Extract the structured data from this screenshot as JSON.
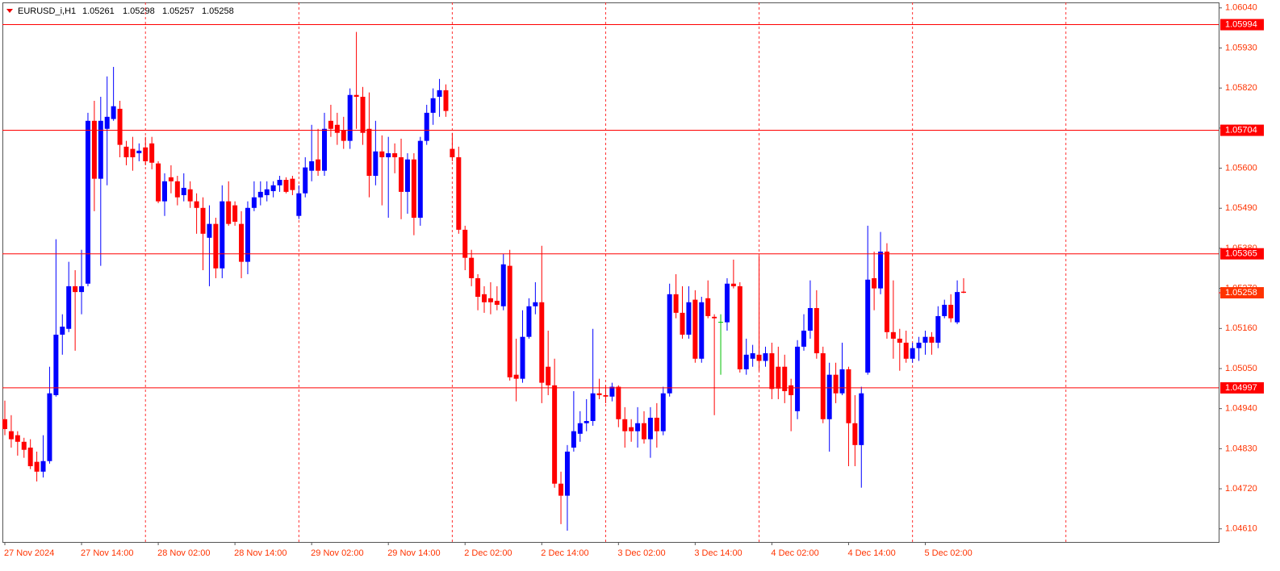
{
  "chart_data": {
    "type": "candlestick",
    "symbol": "EURUSD_i,H1",
    "categories": [
      "27 Nov 2024",
      null,
      null,
      null,
      null,
      null,
      null,
      null,
      null,
      null,
      null,
      null,
      "27 Nov 14:00",
      null,
      null,
      null,
      null,
      null,
      null,
      null,
      null,
      null,
      null,
      null,
      "28 Nov 02:00",
      null,
      null,
      null,
      null,
      null,
      null,
      null,
      null,
      null,
      null,
      null,
      "28 Nov 14:00",
      null,
      null,
      null,
      null,
      null,
      null,
      null,
      null,
      null,
      null,
      null,
      "29 Nov 02:00",
      null,
      null,
      null,
      null,
      null,
      null,
      null,
      null,
      null,
      null,
      null,
      "29 Nov 14:00",
      null,
      null,
      null,
      null,
      null,
      null,
      null,
      null,
      null,
      null,
      null,
      "2 Dec 02:00",
      null,
      null,
      null,
      null,
      null,
      null,
      null,
      null,
      null,
      null,
      null,
      "2 Dec 14:00",
      null,
      null,
      null,
      null,
      null,
      null,
      null,
      null,
      null,
      null,
      null,
      "3 Dec 02:00",
      null,
      null,
      null,
      null,
      null,
      null,
      null,
      null,
      null,
      null,
      null,
      "3 Dec 14:00",
      null,
      null,
      null,
      null,
      null,
      null,
      null,
      null,
      null,
      null,
      null,
      "4 Dec 02:00",
      null,
      null,
      null,
      null,
      null,
      null,
      null,
      null,
      null,
      null,
      null,
      "4 Dec 14:00",
      null,
      null,
      null,
      null,
      null,
      null,
      null,
      null,
      null,
      null,
      null,
      "5 Dec 02:00",
      null,
      null,
      null,
      null,
      null,
      null
    ],
    "open": [
      1.04911,
      1.04878,
      1.04867,
      1.04849,
      1.04833,
      1.04794,
      1.04767,
      1.04796,
      1.04977,
      1.05143,
      1.05159,
      1.05276,
      1.0526,
      1.05283,
      1.0573,
      1.05571,
      1.05708,
      1.05735,
      1.05763,
      1.05659,
      1.05653,
      1.05641,
      1.05657,
      1.05668,
      1.05613,
      1.05509,
      1.05575,
      1.05564,
      1.05526,
      1.05542,
      1.05509,
      1.05491,
      1.05409,
      1.05447,
      1.05325,
      1.05509,
      1.05498,
      1.05447,
      1.05343,
      1.05491,
      1.0552,
      1.05526,
      1.05537,
      1.05553,
      1.05568,
      1.05571,
      1.05469,
      1.05531,
      1.05593,
      1.05624,
      1.05593,
      1.0573,
      1.05719,
      1.05703,
      1.05675,
      1.05801,
      1.05796,
      1.05708,
      1.05579,
      1.05646,
      1.0563,
      1.05641,
      1.0563,
      1.05535,
      1.05624,
      1.05464,
      1.05675,
      1.05752,
      1.05796,
      1.05814,
      1.05653,
      1.0563,
      1.05431,
      1.05354,
      1.05298,
      1.05254,
      1.05243,
      1.05236,
      1.05221,
      1.05332,
      1.05033,
      1.05022,
      1.05137,
      1.05221,
      1.05232,
      1.05055,
      1.05004,
      1.04734,
      1.04701,
      1.04833,
      1.04871,
      1.049,
      1.04906,
      1.04982,
      1.04977,
      1.04973,
      1.05,
      1.04911,
      1.04889,
      1.04878,
      1.049,
      1.04856,
      1.04915,
      1.04878,
      1.04982,
      1.05254,
      1.05203,
      1.05143,
      1.05239,
      1.05077,
      1.05243,
      1.05192,
      1.05177,
      1.05177,
      1.05283,
      1.05276,
      1.05048,
      1.05077,
      1.05088,
      1.05071,
      1.05092,
      1.05055,
      1.05055,
      1.05004,
      1.04933,
      1.0511,
      1.05154,
      1.05216,
      1.05092,
      1.04911,
      1.05033,
      1.04982,
      1.05048,
      1.049,
      1.0484,
      1.05039,
      1.05298,
      1.0527,
      1.05371,
      1.0515,
      1.05132,
      1.05121,
      1.05077,
      1.05106,
      1.05121,
      1.05137,
      1.05121,
      1.05194,
      1.05225,
      1.05177,
      1.05261
    ],
    "high": [
      1.04962,
      1.04922,
      1.04878,
      1.0486,
      1.04856,
      1.04822,
      1.04867,
      1.05055,
      1.05405,
      1.05199,
      1.05343,
      1.0532,
      1.05376,
      1.05752,
      1.05785,
      1.05796,
      1.05852,
      1.05878,
      1.05785,
      1.05675,
      1.05686,
      1.05668,
      1.05686,
      1.05686,
      1.05619,
      1.05586,
      1.05608,
      1.05579,
      1.05586,
      1.05564,
      1.05531,
      1.0552,
      1.05498,
      1.05464,
      1.05553,
      1.05564,
      1.05509,
      1.05482,
      1.05509,
      1.05564,
      1.05564,
      1.05564,
      1.05564,
      1.05579,
      1.05575,
      1.05579,
      1.05553,
      1.0563,
      1.05719,
      1.05708,
      1.05752,
      1.05774,
      1.05752,
      1.05741,
      1.05819,
      1.05974,
      1.05823,
      1.05808,
      1.0573,
      1.0569,
      1.05686,
      1.05668,
      1.05681,
      1.05641,
      1.05641,
      1.05686,
      1.05774,
      1.05819,
      1.05845,
      1.0583,
      1.05697,
      1.05659,
      1.05442,
      1.05376,
      1.05309,
      1.05276,
      1.05287,
      1.05276,
      1.05365,
      1.05376,
      1.05132,
      1.0521,
      1.05243,
      1.05287,
      1.05387,
      1.05154,
      1.05077,
      1.04767,
      1.0484,
      1.04988,
      1.04933,
      1.04966,
      1.05159,
      1.05022,
      1.05004,
      1.05011,
      1.05004,
      1.04944,
      1.04911,
      1.04944,
      1.04933,
      1.04944,
      1.04955,
      1.05,
      1.05283,
      1.05309,
      1.05276,
      1.05276,
      1.05265,
      1.05247,
      1.05292,
      1.05199,
      1.05199,
      1.05298,
      1.05349,
      1.05287,
      1.05132,
      1.05115,
      1.05358,
      1.0511,
      1.05121,
      1.0511,
      1.05088,
      1.05022,
      1.05128,
      1.05199,
      1.05292,
      1.05265,
      1.0511,
      1.05066,
      1.05066,
      1.05121,
      1.05055,
      1.04977,
      1.05,
      1.05442,
      1.05371,
      1.05425,
      1.05394,
      1.05292,
      1.05159,
      1.05154,
      1.05121,
      1.05137,
      1.05154,
      1.0515,
      1.05221,
      1.05239,
      1.05254,
      1.05292,
      1.05298
    ],
    "low": [
      1.04867,
      1.04833,
      1.04811,
      1.04805,
      1.04774,
      1.0474,
      1.04751,
      1.04789,
      1.04973,
      1.05088,
      1.0515,
      1.05099,
      1.05199,
      1.05276,
      1.05482,
      1.05332,
      1.05553,
      1.0573,
      1.0563,
      1.05608,
      1.05593,
      1.05619,
      1.05608,
      1.05597,
      1.05504,
      1.05469,
      1.05531,
      1.05498,
      1.05509,
      1.05491,
      1.0542,
      1.0532,
      1.05276,
      1.05298,
      1.05298,
      1.05442,
      1.05442,
      1.05298,
      1.05309,
      1.05482,
      1.05498,
      1.05509,
      1.0552,
      1.05535,
      1.05531,
      1.05526,
      1.0546,
      1.0552,
      1.05564,
      1.05579,
      1.05579,
      1.05686,
      1.05664,
      1.05653,
      1.05653,
      1.05708,
      1.05664,
      1.0552,
      1.05553,
      1.05498,
      1.05464,
      1.05586,
      1.0546,
      1.05475,
      1.05416,
      1.05442,
      1.05664,
      1.05719,
      1.05741,
      1.05741,
      1.05619,
      1.0542,
      1.0532,
      1.05276,
      1.0521,
      1.05203,
      1.05199,
      1.0521,
      1.0521,
      1.05017,
      1.0496,
      1.05011,
      1.05132,
      1.05199,
      1.04955,
      1.04977,
      1.04723,
      1.04623,
      1.04605,
      1.04822,
      1.04849,
      1.04878,
      1.04893,
      1.04966,
      1.04955,
      1.0496,
      1.04889,
      1.04833,
      1.04849,
      1.04833,
      1.04844,
      1.04805,
      1.04833,
      1.04867,
      1.04973,
      1.05188,
      1.05132,
      1.05132,
      1.05066,
      1.05066,
      1.05188,
      1.04922,
      1.05033,
      1.05154,
      1.0527,
      1.05039,
      1.05033,
      1.05055,
      1.05044,
      1.05055,
      1.04966,
      1.04966,
      1.04955,
      1.04878,
      1.04911,
      1.05099,
      1.05132,
      1.05077,
      1.049,
      1.04822,
      1.04955,
      1.04977,
      1.04782,
      1.04782,
      1.04723,
      1.05033,
      1.0521,
      1.05254,
      1.05132,
      1.05077,
      1.05044,
      1.05066,
      1.05066,
      1.05071,
      1.05088,
      1.05088,
      1.05106,
      1.05188,
      1.05177,
      1.05172,
      1.05257
    ],
    "close": [
      1.04884,
      1.04856,
      1.04849,
      1.04827,
      1.04782,
      1.04767,
      1.04796,
      1.04982,
      1.05143,
      1.05165,
      1.05276,
      1.0526,
      1.05276,
      1.0573,
      1.05571,
      1.0573,
      1.05741,
      1.0577,
      1.05664,
      1.0563,
      1.0563,
      1.05648,
      1.05619,
      1.05615,
      1.05509,
      1.05564,
      1.05564,
      1.0552,
      1.05546,
      1.05509,
      1.05491,
      1.0542,
      1.05447,
      1.05325,
      1.05509,
      1.05447,
      1.05453,
      1.05343,
      1.05491,
      1.0552,
      1.05535,
      1.05542,
      1.05553,
      1.05568,
      1.05535,
      1.0554,
      1.05531,
      1.05602,
      1.05619,
      1.05593,
      1.05708,
      1.05708,
      1.05697,
      1.05675,
      1.05801,
      1.05796,
      1.05697,
      1.05579,
      1.05646,
      1.0563,
      1.05641,
      1.0563,
      1.05535,
      1.05624,
      1.05464,
      1.05675,
      1.05752,
      1.05792,
      1.05814,
      1.05757,
      1.0563,
      1.05431,
      1.05354,
      1.05298,
      1.05247,
      1.05232,
      1.05232,
      1.05225,
      1.05336,
      1.05026,
      1.05022,
      1.05137,
      1.05221,
      1.05232,
      1.05011,
      1.05004,
      1.04734,
      1.04701,
      1.04822,
      1.04878,
      1.049,
      1.04906,
      1.04982,
      1.04977,
      1.04973,
      1.05,
      1.04911,
      1.04878,
      1.04878,
      1.049,
      1.04856,
      1.04915,
      1.04878,
      1.04982,
      1.05254,
      1.05203,
      1.05143,
      1.05232,
      1.05077,
      1.05232,
      1.05194,
      1.05188,
      1.05177,
      1.05283,
      1.05276,
      1.05048,
      1.05088,
      1.05092,
      1.05071,
      1.05092,
      1.04994,
      1.04995,
      1.04988,
      1.04977,
      1.0511,
      1.05154,
      1.05216,
      1.05092,
      1.04911,
      1.05033,
      1.04982,
      1.05048,
      1.049,
      1.0484,
      1.04982,
      1.05294,
      1.0527,
      1.05371,
      1.0515,
      1.05132,
      1.05121,
      1.05077,
      1.05106,
      1.05121,
      1.05137,
      1.05121,
      1.05194,
      1.05225,
      1.05188,
      1.0526,
      1.05258
    ],
    "up_color": "#0000ff",
    "down_color": "#ff0000",
    "doji_color": "#00c000",
    "ylim": [
      1.04574,
      1.06055
    ],
    "yticks": [
      {
        "value": 1.0604,
        "label": "1.06040"
      },
      {
        "value": 1.0593,
        "label": "1.05930"
      },
      {
        "value": 1.0582,
        "label": "1.05820"
      },
      {
        "value": 1.0571,
        "label": "1.05710"
      },
      {
        "value": 1.056,
        "label": "1.05600"
      },
      {
        "value": 1.0549,
        "label": "1.05490"
      },
      {
        "value": 1.0538,
        "label": "1.05380"
      },
      {
        "value": 1.0527,
        "label": "1.05270"
      },
      {
        "value": 1.0516,
        "label": "1.05160"
      },
      {
        "value": 1.0505,
        "label": "1.05050"
      },
      {
        "value": 1.0494,
        "label": "1.04940"
      },
      {
        "value": 1.0483,
        "label": "1.04830"
      },
      {
        "value": 1.0472,
        "label": "1.04720"
      },
      {
        "value": 1.0461,
        "label": "1.04610"
      }
    ],
    "hlines": [
      1.05994,
      1.05704,
      1.05365,
      1.04997
    ],
    "hline_color": "#ff0000",
    "axis_color": "#ff3300"
  }
}
